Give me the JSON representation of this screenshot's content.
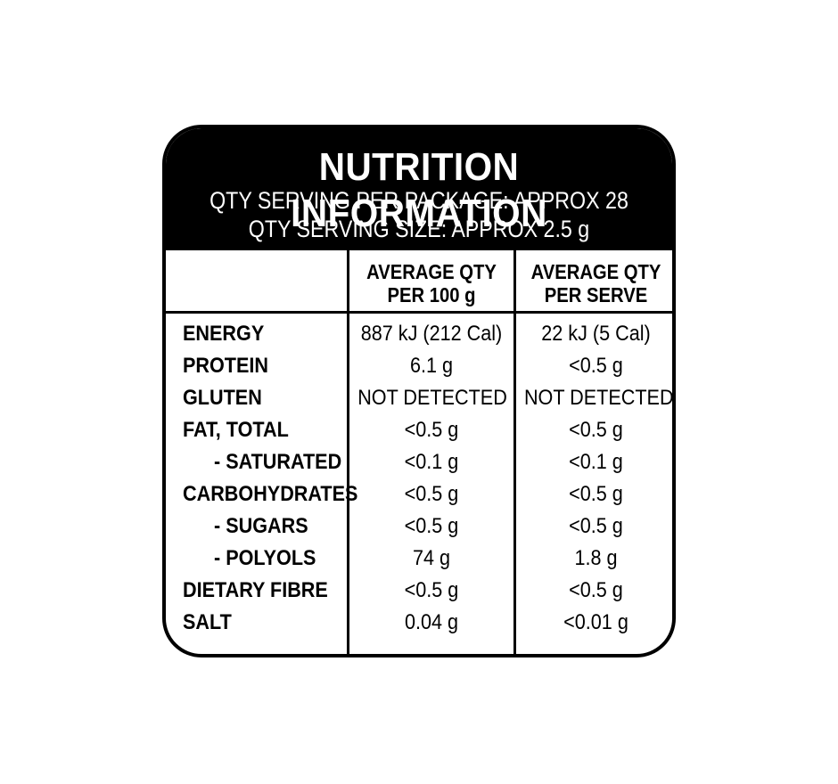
{
  "header": {
    "title": "NUTRITION INFORMATION",
    "servings_per_package": "QTY SERVING PER PACKAGE: APPROX 28",
    "serving_size": "QTY SERVING SIZE: APPROX 2.5 g"
  },
  "columns": {
    "per100_line1": "AVERAGE QTY",
    "per100_line2": "PER 100 g",
    "perserve_line1": "AVERAGE QTY",
    "perserve_line2": "PER SERVE"
  },
  "rows": [
    {
      "label": "ENERGY",
      "per100": "887 kJ (212 Cal)",
      "perserve": "22 kJ (5 Cal)"
    },
    {
      "label": "PROTEIN",
      "per100": "6.1 g",
      "perserve": "<0.5 g"
    },
    {
      "label": "GLUTEN",
      "per100": "NOT DETECTED",
      "perserve": "NOT DETECTED"
    },
    {
      "label": "FAT, TOTAL",
      "per100": "<0.5 g",
      "perserve": "<0.5 g"
    },
    {
      "label": "- SATURATED",
      "per100": "<0.1 g",
      "perserve": "<0.1 g"
    },
    {
      "label": "CARBOHYDRATES",
      "per100": "<0.5 g",
      "perserve": "<0.5 g"
    },
    {
      "label": "- SUGARS",
      "per100": "<0.5 g",
      "perserve": "<0.5 g"
    },
    {
      "label": "- POLYOLS",
      "per100": "74 g",
      "perserve": "1.8 g"
    },
    {
      "label": "DIETARY FIBRE",
      "per100": "<0.5 g",
      "perserve": "<0.5 g"
    },
    {
      "label": "SALT",
      "per100": "0.04 g",
      "perserve": "<0.01 g"
    }
  ]
}
